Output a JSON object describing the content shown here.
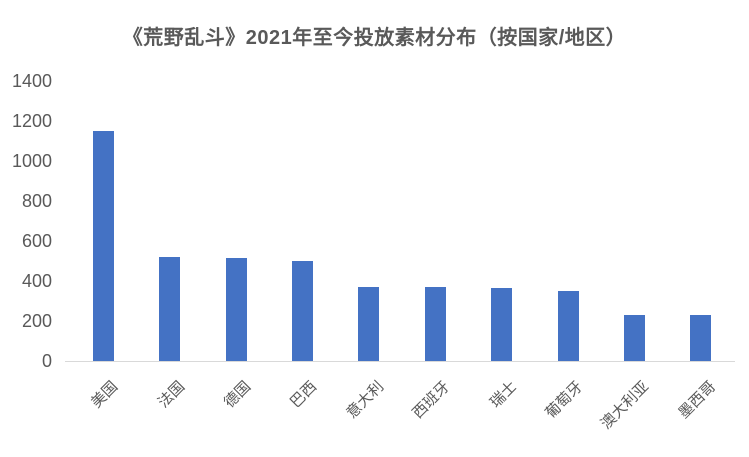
{
  "chart_data": {
    "type": "bar",
    "title": "《荒野乱斗》2021年至今投放素材分布（按国家/地区）",
    "categories": [
      "美国",
      "法国",
      "德国",
      "巴西",
      "意大利",
      "西班牙",
      "瑞士",
      "葡萄牙",
      "澳大利亚",
      "墨西哥"
    ],
    "values": [
      1150,
      520,
      515,
      500,
      370,
      370,
      365,
      350,
      230,
      230
    ],
    "xlabel": "",
    "ylabel": "",
    "ylim": [
      0,
      1400
    ],
    "yticks": [
      0,
      200,
      400,
      600,
      800,
      1000,
      1200,
      1400
    ],
    "grid": false,
    "legend": false,
    "bar_color": "#4472c4",
    "axis_line_color": "#d9d9d9",
    "text_color": "#595959",
    "title_color": "#595959"
  }
}
